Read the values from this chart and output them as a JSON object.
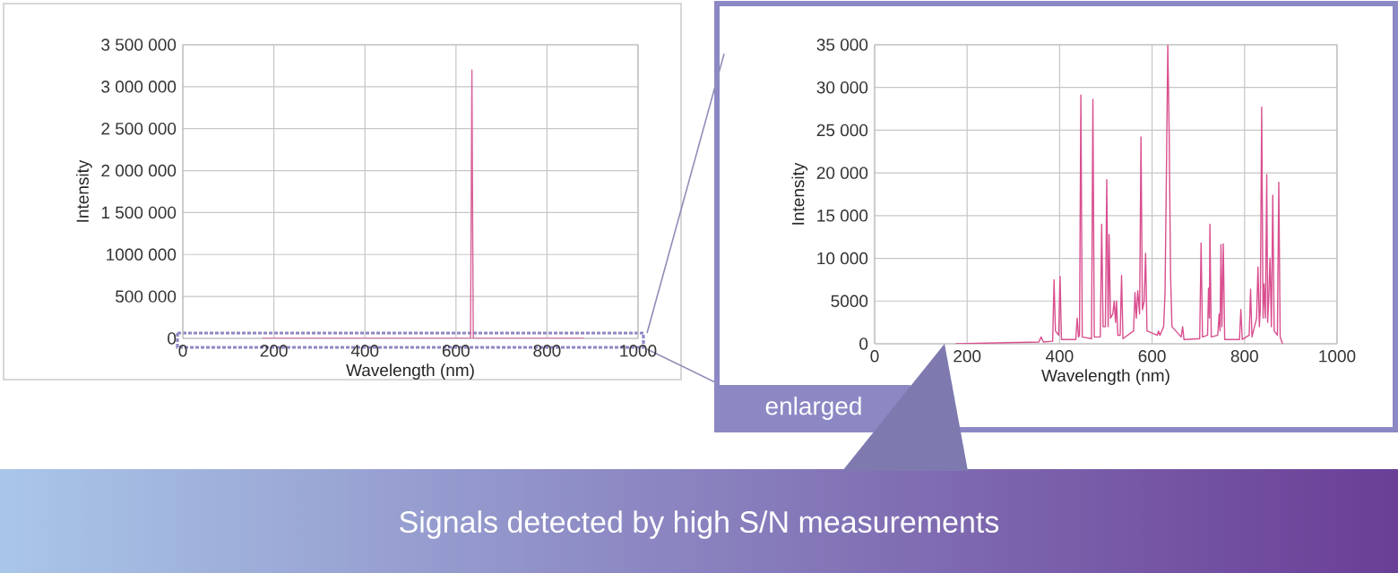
{
  "chart_data": [
    {
      "type": "line",
      "xlabel": "Wavelength (nm)",
      "ylabel": "Intensity",
      "x": [
        175,
        632,
        635,
        638,
        882
      ],
      "series": [
        {
          "color": "#d6609a",
          "values": [
            0,
            0,
            3200000,
            0,
            0
          ]
        }
      ],
      "xlim": [
        0,
        1000
      ],
      "ylim": [
        0,
        3500000
      ],
      "xticks": [
        0,
        200,
        400,
        600,
        800,
        1000
      ],
      "yticks": [
        0,
        {
          "value": 500000,
          "label": "500 000"
        },
        {
          "value": 1000000,
          "label": "1000 000"
        },
        {
          "value": 1500000,
          "label": "1 500 000"
        },
        {
          "value": 2000000,
          "label": "2 000 000"
        },
        {
          "value": 2500000,
          "label": "2 500 000"
        },
        {
          "value": 3000000,
          "label": "3 000 000"
        },
        {
          "value": 3500000,
          "label": "3 500 000"
        }
      ],
      "grid": true
    },
    {
      "type": "line",
      "xlabel": "Wavelength (nm)",
      "ylabel": "Intensity",
      "x": [
        175,
        355,
        360,
        365,
        385,
        388,
        391,
        398,
        401,
        404,
        435,
        438,
        441,
        443,
        446,
        449,
        469,
        472,
        475,
        488,
        491,
        494,
        499,
        502,
        505,
        507,
        510,
        515,
        518,
        521,
        523,
        526,
        531,
        534,
        537,
        560,
        563,
        566,
        569,
        573,
        576,
        579,
        583,
        586,
        589,
        611,
        614,
        617,
        625,
        628,
        631,
        634,
        637,
        640,
        643,
        663,
        666,
        669,
        703,
        706,
        709,
        720,
        722,
        724,
        725,
        728,
        742,
        745,
        747,
        749,
        751,
        754,
        757,
        789,
        792,
        795,
        810,
        813,
        816,
        826,
        829,
        832,
        834,
        837,
        840,
        842,
        845,
        848,
        850,
        852,
        855,
        858,
        861,
        864,
        871,
        874,
        877,
        882
      ],
      "series": [
        {
          "color": "#d94f8f",
          "values": [
            0,
            200,
            800,
            200,
            300,
            7500,
            1500,
            1000,
            7900,
            500,
            500,
            3000,
            800,
            1000,
            29100,
            800,
            600,
            28600,
            800,
            800,
            14000,
            2000,
            2000,
            19200,
            2000,
            12800,
            3000,
            3500,
            5000,
            2500,
            5000,
            1000,
            1000,
            8000,
            600,
            1500,
            6000,
            3000,
            6200,
            3500,
            24200,
            4000,
            5000,
            10600,
            1500,
            1000,
            1500,
            1000,
            2000,
            6000,
            20000,
            35000,
            24500,
            8000,
            2000,
            800,
            2000,
            500,
            600,
            11800,
            800,
            1000,
            6500,
            3000,
            14000,
            800,
            1000,
            3500,
            1500,
            11600,
            2000,
            11700,
            500,
            500,
            4000,
            500,
            1000,
            6400,
            800,
            3000,
            9000,
            2000,
            4000,
            27700,
            3000,
            7000,
            3000,
            19800,
            2500,
            5000,
            10000,
            2000,
            17400,
            1500,
            1000,
            18900,
            800,
            0
          ]
        }
      ],
      "xlim": [
        0,
        1000
      ],
      "ylim": [
        0,
        35000
      ],
      "xticks": [
        0,
        200,
        400,
        600,
        800,
        1000
      ],
      "yticks": [
        0,
        5000,
        {
          "value": 10000,
          "label": "10 000"
        },
        {
          "value": 15000,
          "label": "15 000"
        },
        {
          "value": 20000,
          "label": "20 000"
        },
        {
          "value": 25000,
          "label": "25 000"
        },
        {
          "value": 30000,
          "label": "30 000"
        },
        {
          "value": 35000,
          "label": "35 000"
        }
      ],
      "grid": true,
      "annotations": [
        "enlarged",
        "Signals detected by high S/N measurements"
      ]
    }
  ]
}
